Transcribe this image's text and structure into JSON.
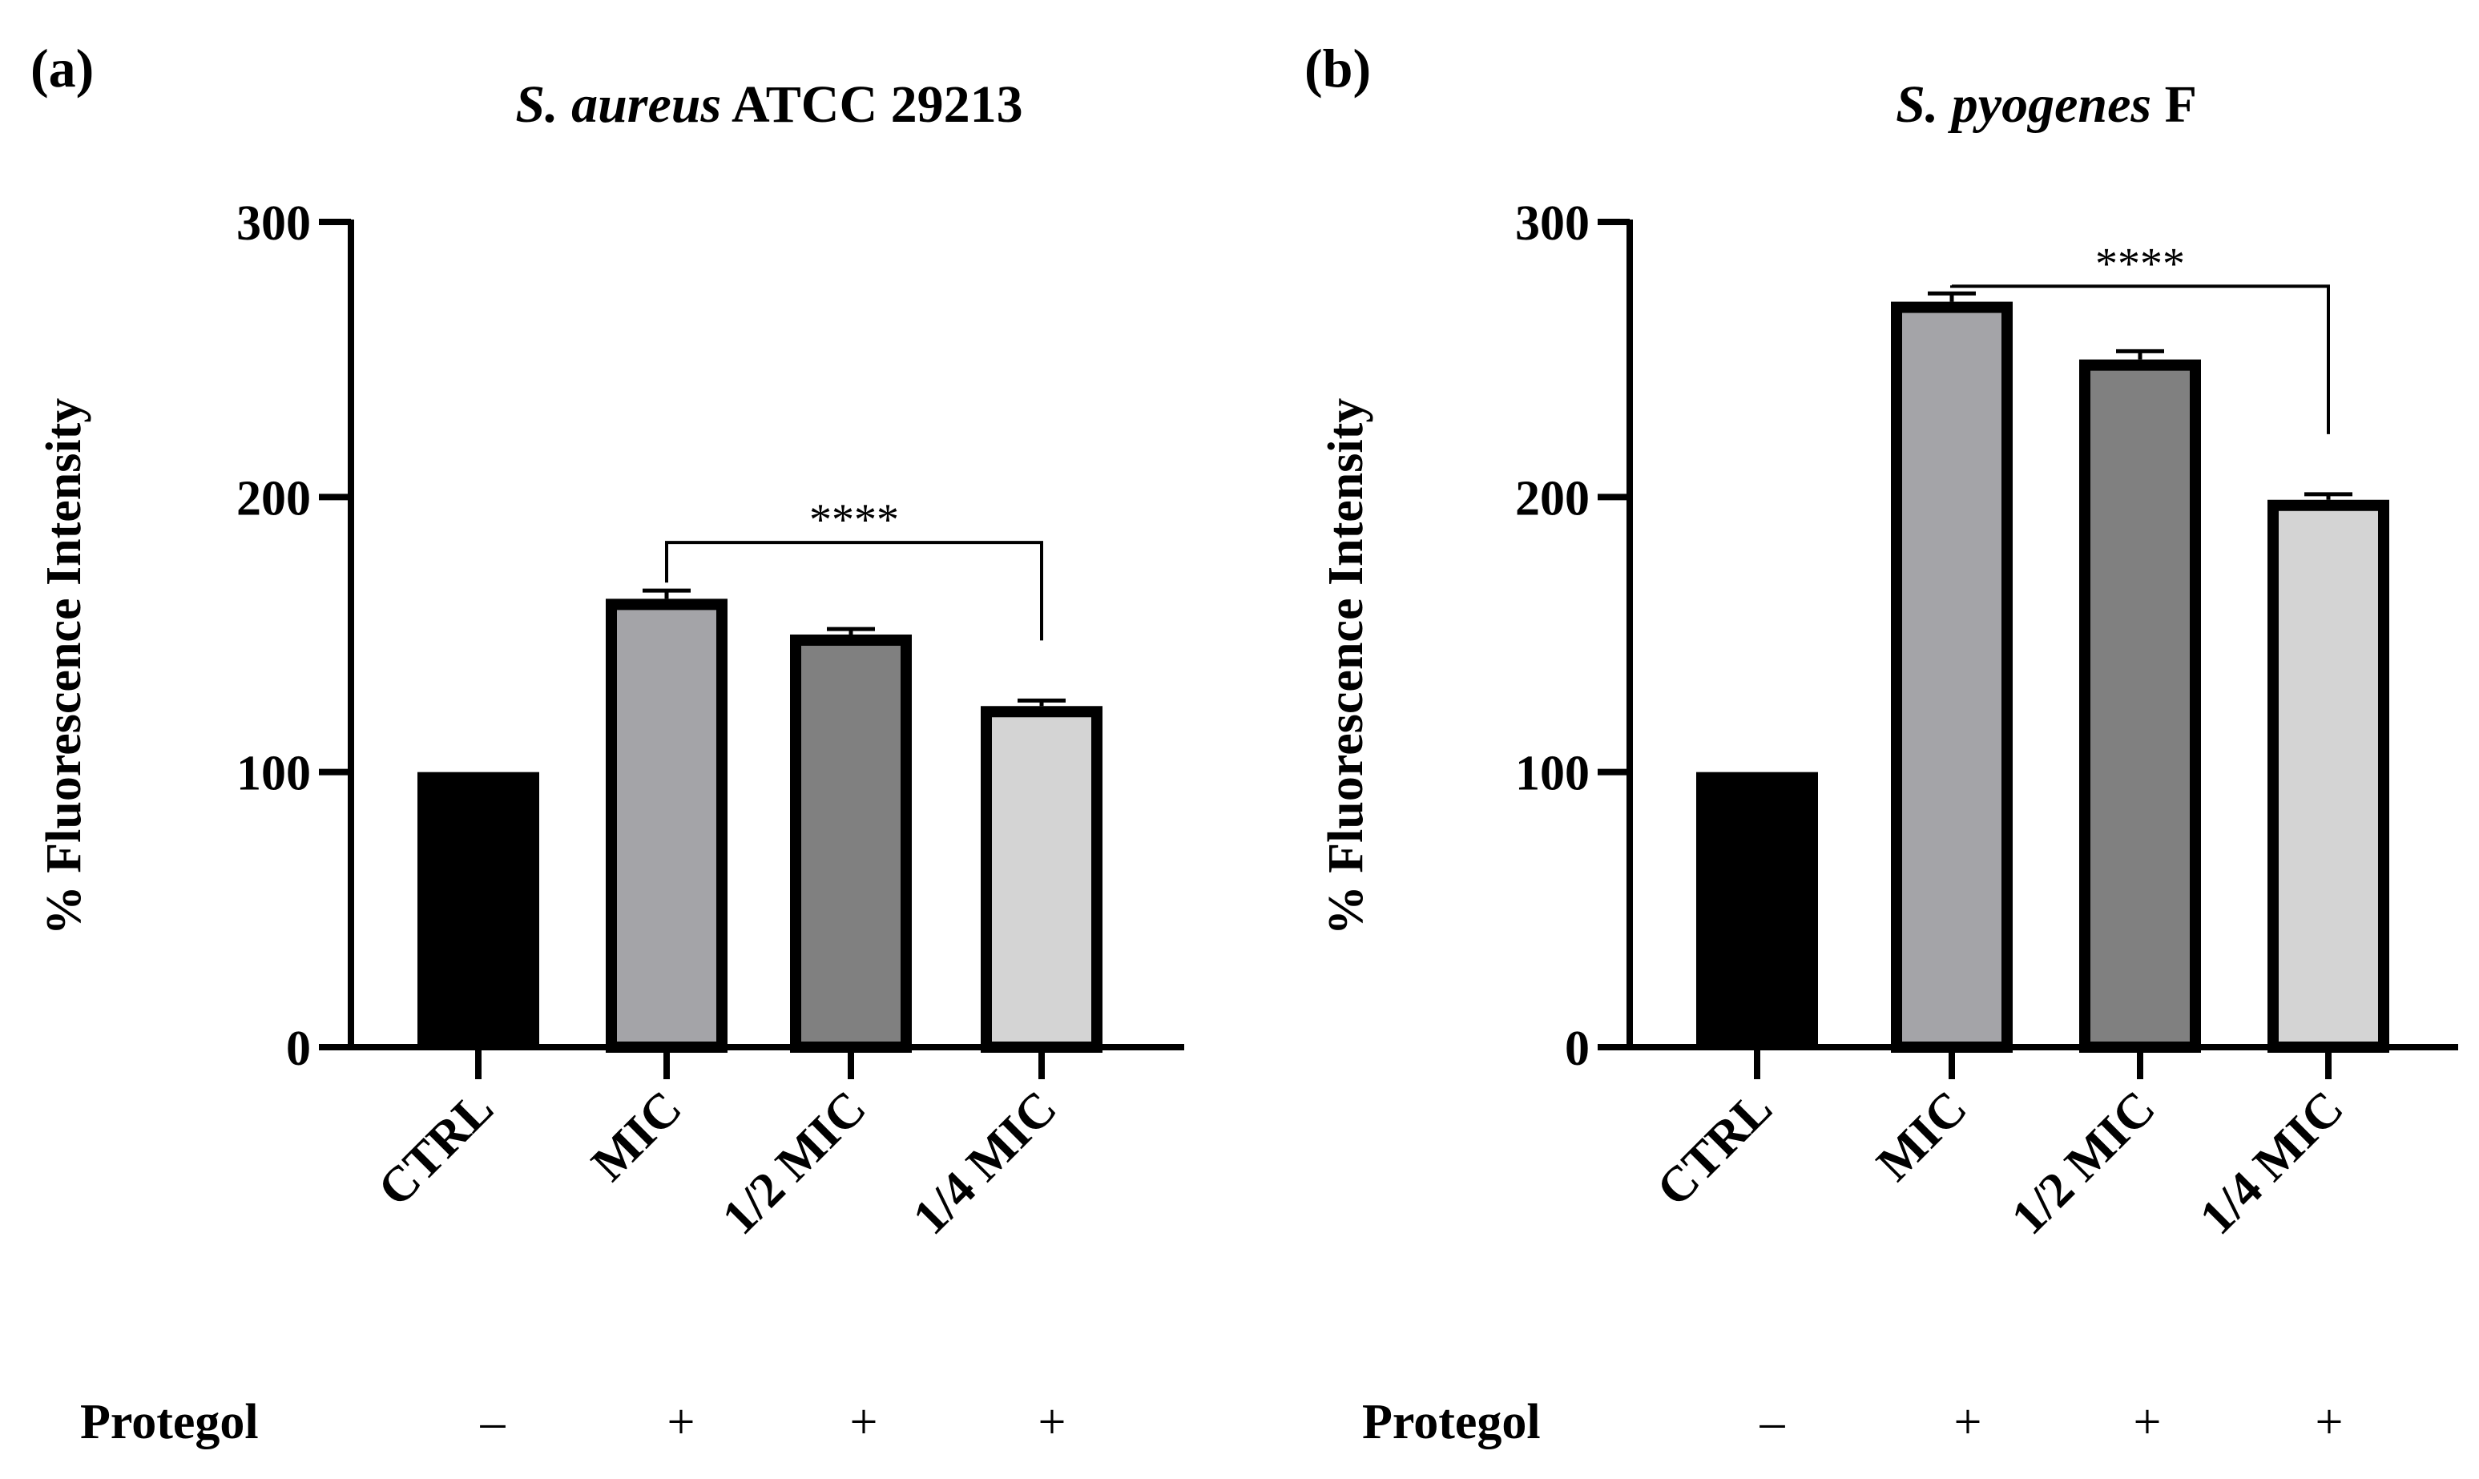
{
  "figure": {
    "protegol_label": "Protegol",
    "protegol_signs": [
      "–",
      "+",
      "+",
      "+"
    ]
  },
  "chart_data": [
    {
      "panel": "(a)",
      "type": "bar",
      "title_italic": "S. aureus",
      "title_rest": " ATCC 29213",
      "xlabel": "",
      "ylabel": "% Fluorescence Intensity",
      "ylim": [
        0,
        300
      ],
      "yticks": [
        0,
        100,
        200,
        300
      ],
      "categories": [
        "CTRL",
        "MIC",
        "1/2 MIC",
        "1/4 MIC"
      ],
      "values": [
        100,
        163,
        150,
        124
      ],
      "errors": [
        0,
        3,
        2,
        2
      ],
      "colors": [
        "#000000",
        "#a4a4a8",
        "#808080",
        "#d4d4d4"
      ],
      "significance": {
        "from": 1,
        "to": 3,
        "label": "****"
      }
    },
    {
      "panel": "(b)",
      "type": "bar",
      "title_italic": "S. pyogenes",
      "title_rest": " F",
      "xlabel": "",
      "ylabel": "% Fluorescence Intensity",
      "ylim": [
        0,
        300
      ],
      "yticks": [
        0,
        100,
        200,
        300
      ],
      "categories": [
        "CTRL",
        "MIC",
        "1/2 MIC",
        "1/4 MIC"
      ],
      "values": [
        100,
        271,
        250,
        199
      ],
      "errors": [
        0,
        3,
        3,
        2
      ],
      "colors": [
        "#000000",
        "#a4a4a8",
        "#808080",
        "#d4d4d4"
      ],
      "significance": {
        "from": 1,
        "to": 3,
        "label": "****"
      }
    }
  ]
}
